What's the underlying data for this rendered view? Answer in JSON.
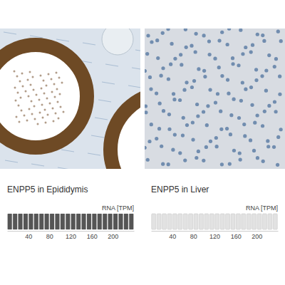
{
  "chart_data": [
    {
      "type": "bar",
      "orientation": "horizontal",
      "title": "ENPP5 in Epididymis",
      "xlabel": "RNA [TPM]",
      "categories": [
        null
      ],
      "values": [
        240
      ],
      "color": "#555555",
      "xlim": [
        0,
        240
      ],
      "xticks": [
        40,
        80,
        120,
        160,
        200
      ],
      "grid": false,
      "tick_labels": "x"
    },
    {
      "type": "bar",
      "orientation": "horizontal",
      "title": "ENPP5 in Liver",
      "xlabel": "RNA [TPM]",
      "categories": [
        null
      ],
      "values": [
        0
      ],
      "color": "#555555",
      "xlim": [
        0,
        240
      ],
      "xticks": [
        40,
        80,
        120,
        160,
        200
      ],
      "grid": false,
      "tick_labels": "x"
    }
  ]
}
